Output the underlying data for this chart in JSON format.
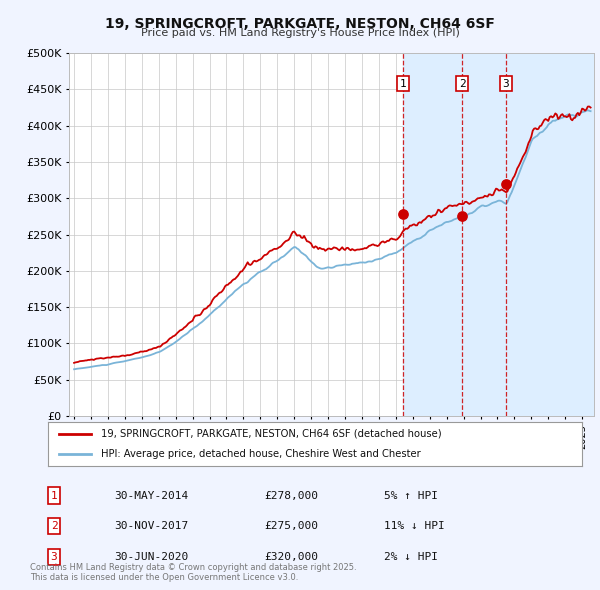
{
  "title": "19, SPRINGCROFT, PARKGATE, NESTON, CH64 6SF",
  "subtitle": "Price paid vs. HM Land Registry's House Price Index (HPI)",
  "legend_line1": "19, SPRINGCROFT, PARKGATE, NESTON, CH64 6SF (detached house)",
  "legend_line2": "HPI: Average price, detached house, Cheshire West and Chester",
  "transaction_color": "#cc0000",
  "hpi_color": "#7ab4d8",
  "shade_color": "#ddeeff",
  "background_color": "#f0f4ff",
  "plot_bg_color": "#ffffff",
  "ylim": [
    0,
    500000
  ],
  "yticks": [
    0,
    50000,
    100000,
    150000,
    200000,
    250000,
    300000,
    350000,
    400000,
    450000,
    500000
  ],
  "xlim_start": 1994.7,
  "xlim_end": 2025.7,
  "transactions": [
    {
      "year": 2014.41,
      "price": 278000,
      "label": "1",
      "pct": "5%",
      "dir": "↑",
      "date": "30-MAY-2014"
    },
    {
      "year": 2017.91,
      "price": 275000,
      "label": "2",
      "pct": "11%",
      "dir": "↓",
      "date": "30-NOV-2017"
    },
    {
      "year": 2020.5,
      "price": 320000,
      "label": "3",
      "pct": "2%",
      "dir": "↓",
      "date": "30-JUN-2020"
    }
  ],
  "footnote": "Contains HM Land Registry data © Crown copyright and database right 2025.\nThis data is licensed under the Open Government Licence v3.0."
}
